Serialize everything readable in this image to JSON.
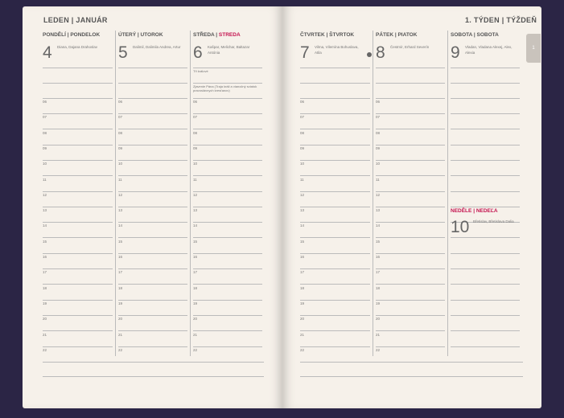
{
  "left_page": {
    "month": "LEDEN | JANUÁR",
    "days": [
      {
        "header_cz": "PONDĚLÍ",
        "header_sk": "PONDELOK",
        "number": "4",
        "names": "Diana, Dajana Drahoslav"
      },
      {
        "header_cz": "ÚTERÝ",
        "header_sk": "UTOROK",
        "number": "5",
        "names": "Dalimil, Dalimila Andrea, Artur"
      },
      {
        "header_cz": "STŘEDA",
        "header_sk": "STREDA",
        "number": "6",
        "names": "Kašpar, Melichar, Baltazar Antónia",
        "note1": "Tři králové",
        "note2": "Zjavenie Pána (Traja králi a vianočný sviatok pravoslávnych kresťanov)"
      }
    ]
  },
  "right_page": {
    "week": "1. TÝDEN | TÝŽDEŇ",
    "tab": "1",
    "days": [
      {
        "header_cz": "ČTVRTEK",
        "header_sk": "ŠTVRTOK",
        "number": "7",
        "names": "Vilma, Vilemína Bohuslava, Atila"
      },
      {
        "header_cz": "PÁTEK",
        "header_sk": "PIATOK",
        "number": "8",
        "names": "Čestmír, Erhard Severín"
      },
      {
        "header_cz": "SOBOTA",
        "header_sk": "SOBOTA",
        "number": "9",
        "names": "Vladan, Vladana Alexej, Alex, Alexia"
      }
    ],
    "sunday": {
      "header_cz": "NEDĚLE",
      "header_sk": "NEDEĽA",
      "number": "10",
      "names": "Břetislav, Břetislava Dalia"
    }
  },
  "hours": [
    "06",
    "07",
    "08",
    "09",
    "10",
    "11",
    "12",
    "13",
    "14",
    "15",
    "16",
    "17",
    "18",
    "19",
    "20",
    "21",
    "22"
  ],
  "colors": {
    "accent": "#c4134f",
    "paper": "#f6f1ea",
    "cover": "#2b2545"
  }
}
